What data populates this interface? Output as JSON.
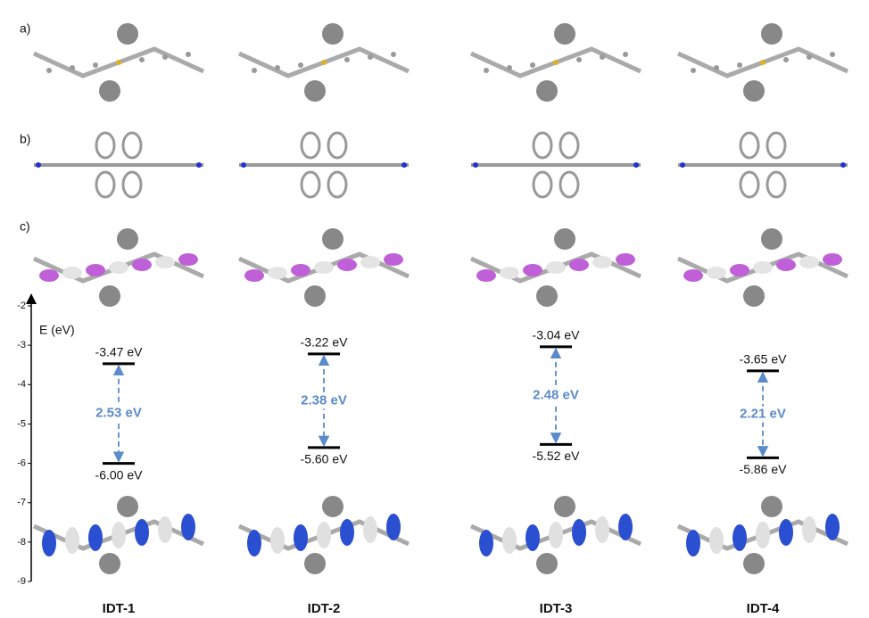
{
  "chart_data": {
    "type": "energy-level",
    "panel_labels": [
      "a)",
      "b)",
      "c)"
    ],
    "ylabel": "E (eV)",
    "ylim": [
      -9,
      -2
    ],
    "yticks": [
      -2,
      -3,
      -4,
      -5,
      -6,
      -7,
      -8,
      -9
    ],
    "categories": [
      "IDT-1",
      "IDT-2",
      "IDT-3",
      "IDT-4"
    ],
    "lumo": {
      "values": [
        -3.47,
        -3.22,
        -3.04,
        -3.65
      ],
      "value_labels": [
        "-3.47 eV",
        "-3.22 eV",
        "-3.04 eV",
        "-3.65 eV"
      ]
    },
    "homo": {
      "values": [
        -6.0,
        -5.6,
        -5.52,
        -5.86
      ],
      "value_labels": [
        "-6.00 eV",
        "-5.60 eV",
        "-5.52 eV",
        "-5.86 eV"
      ]
    },
    "gap": {
      "values": [
        2.53,
        2.38,
        2.48,
        2.21
      ],
      "value_labels": [
        "2.53 eV",
        "2.38 eV",
        "2.48 eV",
        "2.21 eV"
      ]
    },
    "level_color": "#000000",
    "gap_color": "#5b8bc9"
  }
}
